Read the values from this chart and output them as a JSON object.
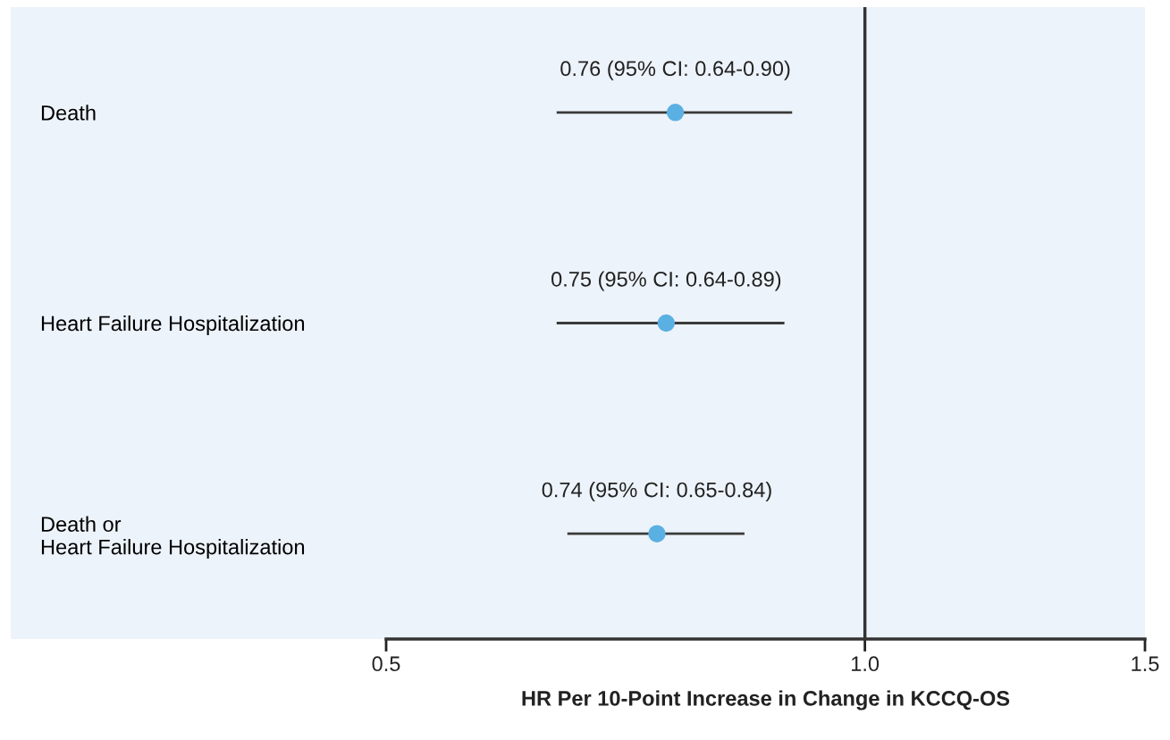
{
  "chart_data": {
    "type": "scatter",
    "orientation": "horizontal",
    "log": "x",
    "categories": [
      "Death",
      "Heart Failure Hospitalization",
      "Death or\nHeart Failure Hospitalization"
    ],
    "values": [
      0.76,
      0.75,
      0.74
    ],
    "errors": [
      [
        0.64,
        0.9
      ],
      [
        0.64,
        0.89
      ],
      [
        0.65,
        0.84
      ]
    ],
    "value_labels": [
      "0.76 (95% CI: 0.64-0.90)",
      "0.75 (95% CI: 0.64-0.89)",
      "0.74 (95% CI: 0.65-0.84)"
    ],
    "color": "#5ab0e2",
    "marker": "circle",
    "xlabel": "HR Per 10-Point Increase in Change in KCCQ-OS",
    "xlim": [
      0.5,
      1.5
    ],
    "xticks": [
      {
        "value": 0.5,
        "label": "0.5"
      },
      {
        "value": 1.0,
        "label": "1.0"
      },
      {
        "value": 1.5,
        "label": "1.5"
      }
    ],
    "ref_lines": [
      {
        "axis": "x",
        "value": 1.0,
        "color": "#333333"
      }
    ],
    "grid": false,
    "legend": false
  }
}
